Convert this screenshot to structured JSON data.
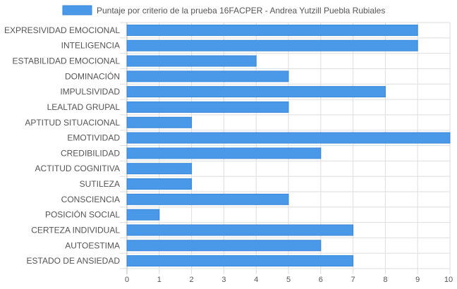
{
  "chart_data": {
    "type": "bar",
    "orientation": "horizontal",
    "legend": {
      "position": "top-center"
    },
    "series": [
      {
        "name": "Puntaje por criterio de la prueba 16FACPER - Andrea Yutzill Puebla Rubiales",
        "color": "#4a98e8",
        "values": [
          9,
          9,
          4,
          5,
          8,
          5,
          2,
          10,
          6,
          2,
          2,
          5,
          1,
          7,
          6,
          7
        ]
      }
    ],
    "categories": [
      "EXPRESIVIDAD EMOCIONAL",
      "INTELIGENCIA",
      "ESTABILIDAD EMOCIONAL",
      "DOMINACIÓN",
      "IMPULSIVIDAD",
      "LEALTAD GRUPAL",
      "APTITUD SITUACIONAL",
      "EMOTIVIDAD",
      "CREDIBILIDAD",
      "ACTITUD COGNITIVA",
      "SUTILEZA",
      "CONSCIENCIA",
      "POSICIÓN SOCIAL",
      "CERTEZA INDIVIDUAL",
      "AUTOESTIMA",
      "ESTADO DE ANSIEDAD"
    ],
    "xlim": [
      0,
      10
    ],
    "xticks": [
      "0",
      "1",
      "2",
      "3",
      "4",
      "5",
      "6",
      "7",
      "8",
      "9",
      "10"
    ],
    "grid": true
  }
}
